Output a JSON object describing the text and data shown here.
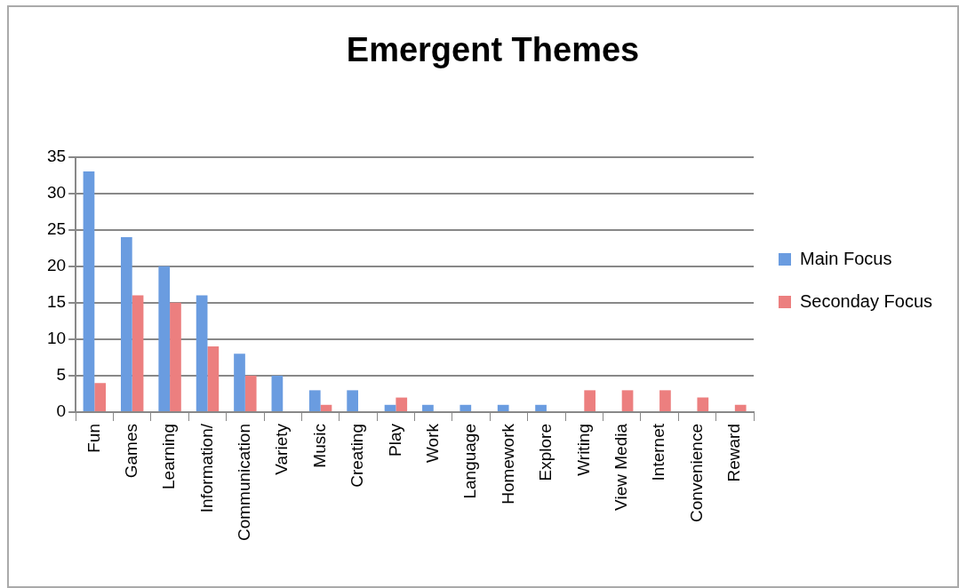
{
  "chart_data": {
    "type": "bar",
    "title": "Emergent Themes",
    "categories": [
      "Fun",
      "Games",
      "Learning",
      "Information/",
      "Communication",
      "Variety",
      "Music",
      "Creating",
      "Play",
      "Work",
      "Language",
      "Homework",
      "Explore",
      "Writing",
      "View Media",
      "Internet",
      "Convenience",
      "Reward"
    ],
    "series": [
      {
        "name": "Main Focus",
        "color": "#6a9ce0",
        "values": [
          33,
          24,
          20,
          16,
          8,
          5,
          3,
          3,
          1,
          1,
          1,
          1,
          1,
          0,
          0,
          0,
          0,
          0
        ]
      },
      {
        "name": "Seconday Focus",
        "color": "#ec7f7f",
        "values": [
          4,
          16,
          15,
          9,
          5,
          0,
          1,
          0,
          2,
          0,
          0,
          0,
          0,
          3,
          3,
          3,
          2,
          1
        ]
      }
    ],
    "ylim": [
      0,
      35
    ],
    "yticks": [
      0,
      5,
      10,
      15,
      20,
      25,
      30,
      35
    ],
    "grid": "y",
    "legend": "right"
  }
}
